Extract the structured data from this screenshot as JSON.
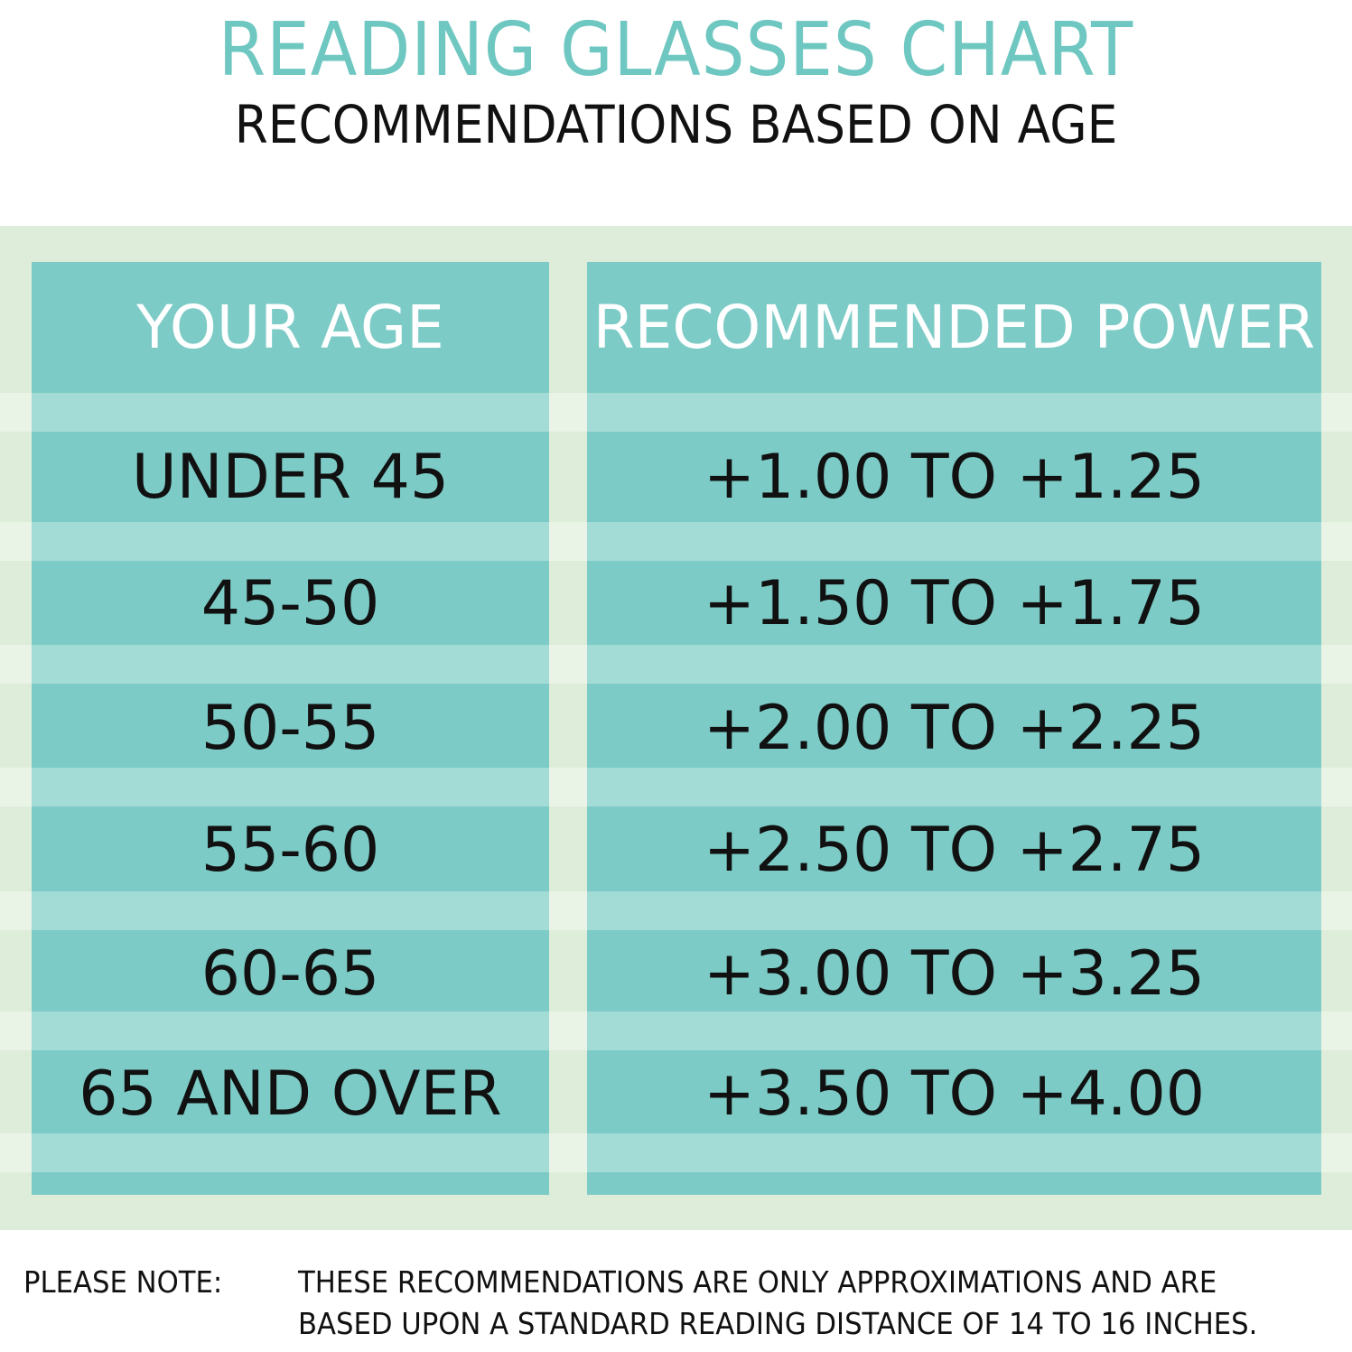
{
  "title": "READING GLASSES CHART",
  "subtitle": "RECOMMENDATIONS BASED ON AGE",
  "colors": {
    "title": "#6fc7c1",
    "cell_dark": "#7ccbc6",
    "cell_light": "#a3dbd6",
    "band": "#deedda"
  },
  "chart_data": {
    "type": "table",
    "title": "READING GLASSES CHART",
    "columns": [
      "YOUR AGE",
      "RECOMMENDED POWER"
    ],
    "rows": [
      [
        "UNDER 45",
        "+1.00 TO +1.25"
      ],
      [
        "45-50",
        "+1.50 TO +1.75"
      ],
      [
        "50-55",
        "+2.00 TO +2.25"
      ],
      [
        "55-60",
        "+2.50 TO +2.75"
      ],
      [
        "60-65",
        "+3.00 TO +3.25"
      ],
      [
        "65 AND OVER",
        "+3.50 TO +4.00"
      ]
    ]
  },
  "note": {
    "label": "PLEASE NOTE:",
    "line1": "THESE RECOMMENDATIONS ARE ONLY APPROXIMATIONS AND ARE",
    "line2": "BASED UPON A STANDARD READING DISTANCE OF 14 TO 16 INCHES."
  }
}
